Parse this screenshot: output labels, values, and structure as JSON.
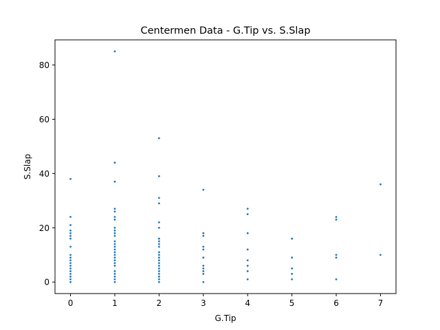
{
  "chart_data": {
    "type": "scatter",
    "title": "Centermen Data - G.Tip vs. S.Slap",
    "xlabel": "G.Tip",
    "ylabel": "S.Slap",
    "xlim": [
      -0.35,
      7.35
    ],
    "ylim": [
      -4.25,
      89.25
    ],
    "xticks": [
      0,
      1,
      2,
      3,
      4,
      5,
      6,
      7
    ],
    "yticks": [
      0,
      20,
      40,
      60,
      80
    ],
    "grid": false,
    "marker_color": "#1f77b4",
    "series": [
      {
        "points": [
          [
            0,
            38
          ],
          [
            0,
            24
          ],
          [
            0,
            21
          ],
          [
            0,
            19
          ],
          [
            0,
            18
          ],
          [
            0,
            17
          ],
          [
            0,
            16
          ],
          [
            0,
            13
          ],
          [
            0,
            10
          ],
          [
            0,
            9
          ],
          [
            0,
            8
          ],
          [
            0,
            7
          ],
          [
            0,
            6
          ],
          [
            0,
            5
          ],
          [
            0,
            4
          ],
          [
            0,
            3
          ],
          [
            0,
            2
          ],
          [
            0,
            1
          ],
          [
            0,
            0
          ],
          [
            1,
            85
          ],
          [
            1,
            44
          ],
          [
            1,
            37
          ],
          [
            1,
            27
          ],
          [
            1,
            26
          ],
          [
            1,
            24
          ],
          [
            1,
            23
          ],
          [
            1,
            20
          ],
          [
            1,
            19
          ],
          [
            1,
            18
          ],
          [
            1,
            17
          ],
          [
            1,
            15
          ],
          [
            1,
            14
          ],
          [
            1,
            13
          ],
          [
            1,
            12
          ],
          [
            1,
            11
          ],
          [
            1,
            10
          ],
          [
            1,
            9
          ],
          [
            1,
            8
          ],
          [
            1,
            7
          ],
          [
            1,
            6
          ],
          [
            1,
            4
          ],
          [
            1,
            3
          ],
          [
            1,
            2
          ],
          [
            1,
            1
          ],
          [
            1,
            0
          ],
          [
            2,
            53
          ],
          [
            2,
            39
          ],
          [
            2,
            31
          ],
          [
            2,
            29
          ],
          [
            2,
            22
          ],
          [
            2,
            20
          ],
          [
            2,
            16
          ],
          [
            2,
            15
          ],
          [
            2,
            14
          ],
          [
            2,
            13
          ],
          [
            2,
            11
          ],
          [
            2,
            10
          ],
          [
            2,
            9
          ],
          [
            2,
            8
          ],
          [
            2,
            7
          ],
          [
            2,
            6
          ],
          [
            2,
            5
          ],
          [
            2,
            4
          ],
          [
            2,
            3
          ],
          [
            2,
            2
          ],
          [
            2,
            1
          ],
          [
            2,
            0
          ],
          [
            3,
            34
          ],
          [
            3,
            18
          ],
          [
            3,
            17
          ],
          [
            3,
            13
          ],
          [
            3,
            12
          ],
          [
            3,
            9
          ],
          [
            3,
            6
          ],
          [
            3,
            5
          ],
          [
            3,
            4
          ],
          [
            3,
            3
          ],
          [
            3,
            0
          ],
          [
            4,
            27
          ],
          [
            4,
            25
          ],
          [
            4,
            18
          ],
          [
            4,
            12
          ],
          [
            4,
            8
          ],
          [
            4,
            6
          ],
          [
            4,
            4
          ],
          [
            4,
            1
          ],
          [
            5,
            16
          ],
          [
            5,
            9
          ],
          [
            5,
            5
          ],
          [
            5,
            3
          ],
          [
            5,
            1
          ],
          [
            6,
            24
          ],
          [
            6,
            23
          ],
          [
            6,
            10
          ],
          [
            6,
            9
          ],
          [
            6,
            1
          ],
          [
            7,
            36
          ],
          [
            7,
            10
          ]
        ]
      }
    ]
  }
}
